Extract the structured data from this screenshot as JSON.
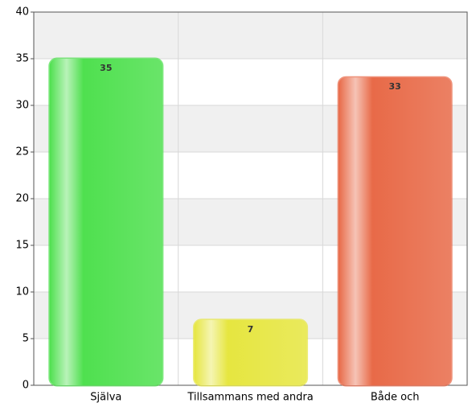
{
  "chart_data": {
    "type": "bar",
    "categories": [
      "Själva",
      "Tillsammans med andra",
      "Både och"
    ],
    "values": [
      35,
      7,
      33
    ],
    "colors": [
      "#4fe04f",
      "#e6e640",
      "#e86a48"
    ],
    "ylim": [
      0,
      40
    ],
    "yticks": [
      0,
      5,
      10,
      15,
      20,
      25,
      30,
      35,
      40
    ],
    "grid": true
  }
}
